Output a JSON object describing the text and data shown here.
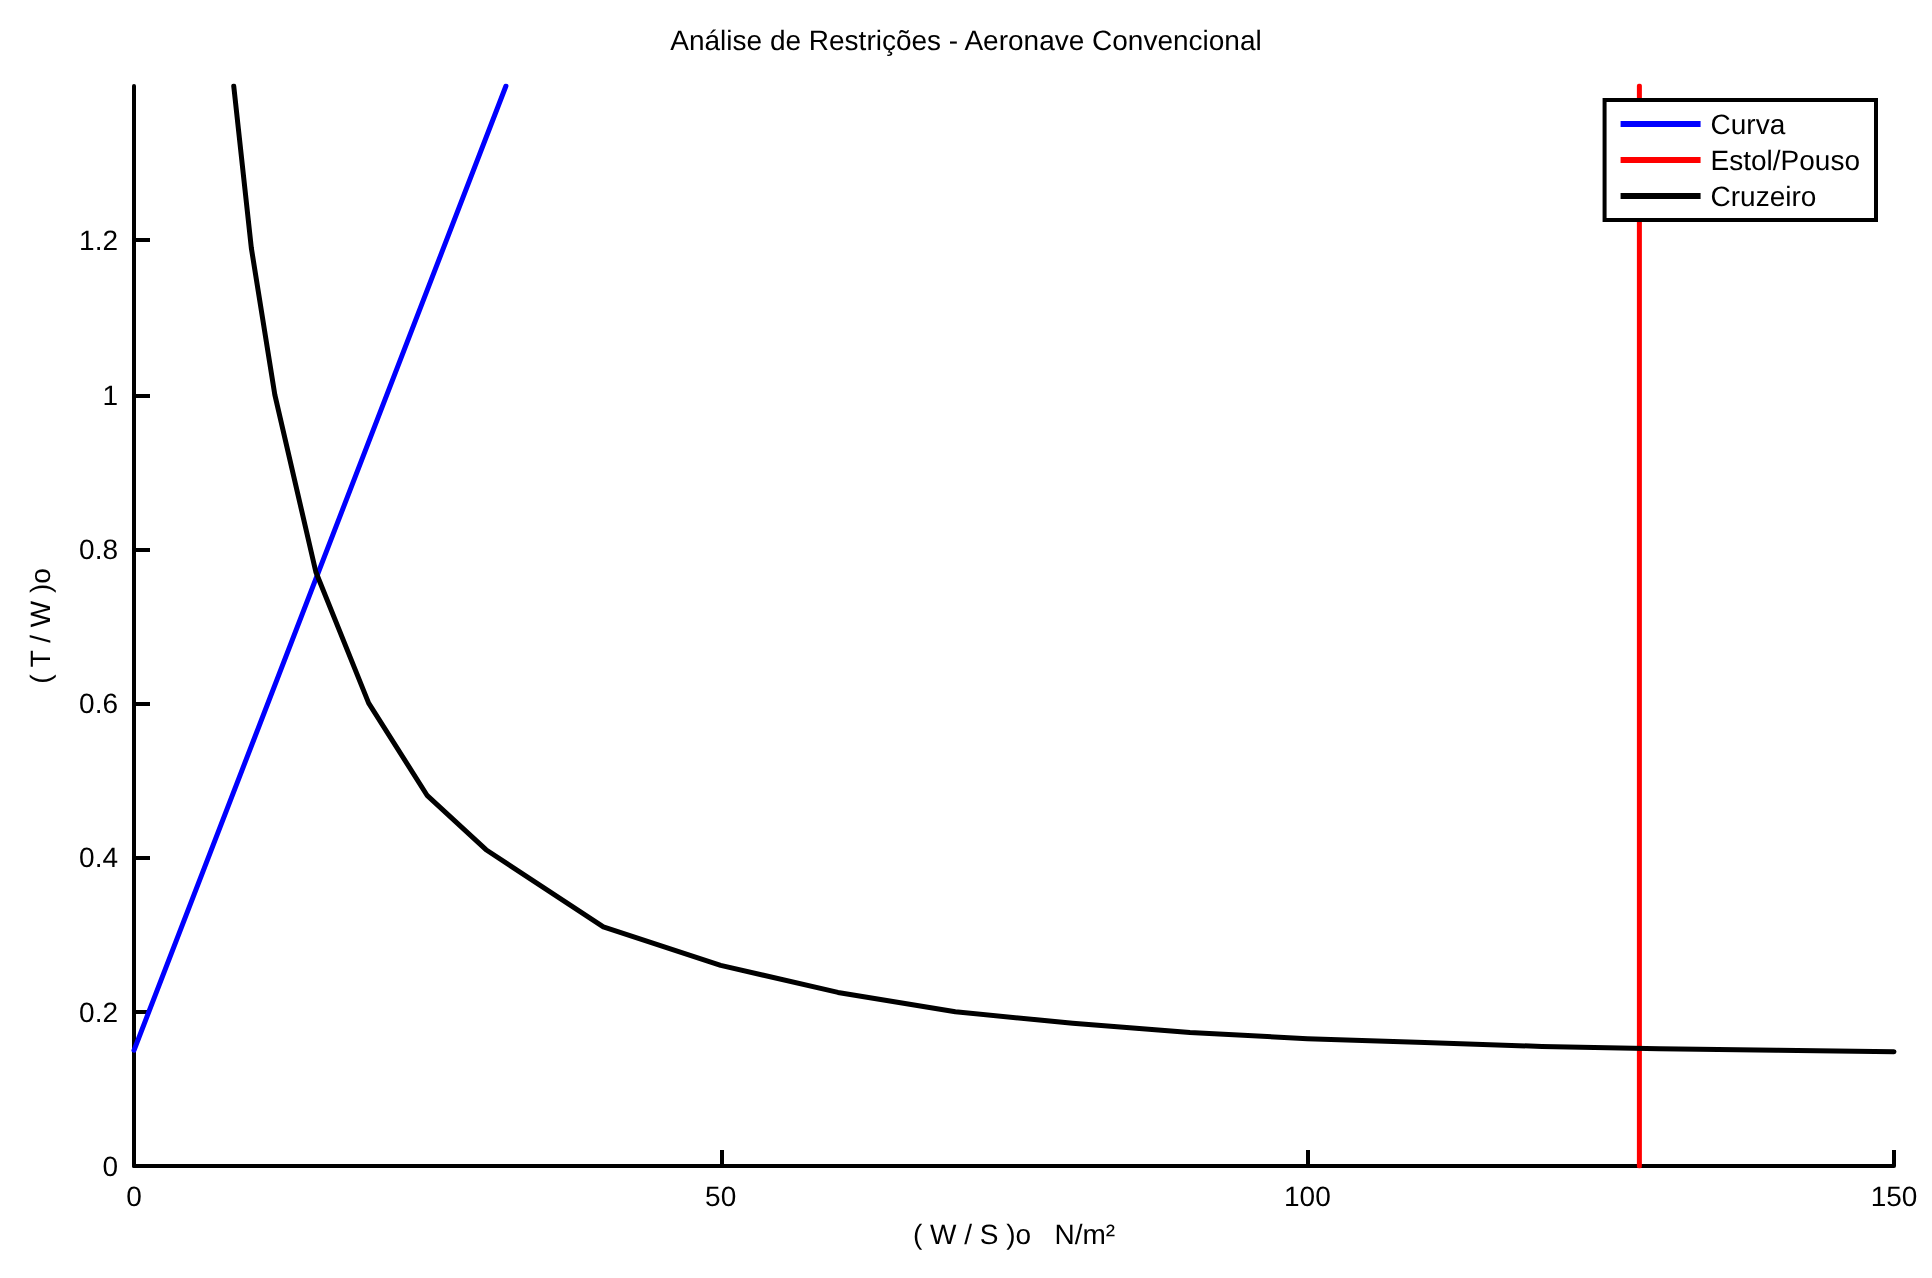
{
  "chart_data": {
    "type": "line",
    "title": "Análise de Restrições - Aeronave Convencional",
    "xlabel": "( W / S )o   N/m²",
    "ylabel": "( T / W )o",
    "xlim": [
      0,
      150
    ],
    "xticks": [
      0,
      50,
      100,
      150
    ],
    "ylim": [
      0,
      1.4
    ],
    "yticks": [
      0,
      0.2,
      0.4,
      0.6,
      0.8,
      1,
      1.2
    ],
    "grid": false,
    "legend": "top right",
    "marker": "none",
    "line_style": "solid",
    "series": [
      {
        "name": "Curva",
        "color": "#0000ff",
        "x": [
          0,
          31.7
        ],
        "values": [
          0.15,
          1.4
        ]
      },
      {
        "name": "Estol/Pouso",
        "color": "#ff0000",
        "x": [
          128.3,
          128.3
        ],
        "values": [
          0,
          1.4
        ]
      },
      {
        "name": "Cruzeiro",
        "color": "#000000",
        "x": [
          8.5,
          10,
          12,
          15.5,
          20,
          25,
          30,
          40,
          50,
          60,
          70,
          80,
          90,
          100,
          110,
          120,
          130,
          140,
          150
        ],
        "values": [
          1.4,
          1.19,
          1.0,
          0.77,
          0.6,
          0.48,
          0.41,
          0.31,
          0.26,
          0.225,
          0.2,
          0.185,
          0.173,
          0.165,
          0.16,
          0.155,
          0.152,
          0.15,
          0.148
        ]
      }
    ]
  }
}
